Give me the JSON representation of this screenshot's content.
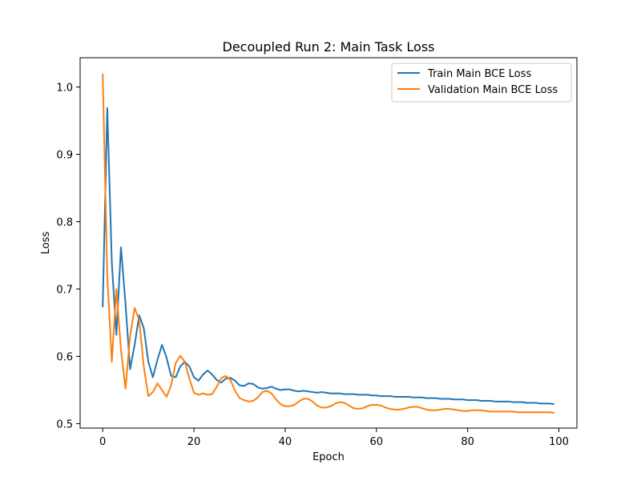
{
  "chart_data": {
    "type": "line",
    "title": "Decoupled Run 2: Main Task Loss",
    "xlabel": "Epoch",
    "ylabel": "Loss",
    "xlim": [
      -4.95,
      103.95
    ],
    "ylim": [
      0.4935,
      1.0435
    ],
    "xticks": [
      0,
      20,
      40,
      60,
      80,
      100
    ],
    "yticks": [
      0.5,
      0.6,
      0.7,
      0.8,
      0.9,
      1.0
    ],
    "xtick_labels": [
      "0",
      "20",
      "40",
      "60",
      "80",
      "100"
    ],
    "ytick_labels": [
      "0.5",
      "0.6",
      "0.7",
      "0.8",
      "0.9",
      "1.0"
    ],
    "grid": false,
    "legend_position": "top-right",
    "series": [
      {
        "name": "Train Main BCE Loss",
        "color": "#1f77b4",
        "x": [
          0,
          1,
          2,
          3,
          4,
          5,
          6,
          7,
          8,
          9,
          10,
          11,
          12,
          13,
          14,
          15,
          16,
          17,
          18,
          19,
          20,
          21,
          22,
          23,
          24,
          25,
          26,
          27,
          28,
          29,
          30,
          31,
          32,
          33,
          34,
          35,
          36,
          37,
          38,
          39,
          40,
          41,
          42,
          43,
          44,
          45,
          46,
          47,
          48,
          49,
          50,
          51,
          52,
          53,
          54,
          55,
          56,
          57,
          58,
          59,
          60,
          61,
          62,
          63,
          64,
          65,
          66,
          67,
          68,
          69,
          70,
          71,
          72,
          73,
          74,
          75,
          76,
          77,
          78,
          79,
          80,
          81,
          82,
          83,
          84,
          85,
          86,
          87,
          88,
          89,
          90,
          91,
          92,
          93,
          94,
          95,
          96,
          97,
          98,
          99
        ],
        "values": [
          0.673,
          0.969,
          0.739,
          0.632,
          0.762,
          0.678,
          0.581,
          0.617,
          0.661,
          0.642,
          0.592,
          0.569,
          0.595,
          0.617,
          0.598,
          0.571,
          0.569,
          0.585,
          0.592,
          0.585,
          0.569,
          0.564,
          0.573,
          0.579,
          0.573,
          0.565,
          0.561,
          0.567,
          0.568,
          0.564,
          0.557,
          0.556,
          0.56,
          0.559,
          0.554,
          0.552,
          0.553,
          0.555,
          0.552,
          0.55,
          0.551,
          0.551,
          0.549,
          0.548,
          0.549,
          0.548,
          0.547,
          0.546,
          0.547,
          0.546,
          0.545,
          0.545,
          0.545,
          0.544,
          0.544,
          0.544,
          0.543,
          0.543,
          0.543,
          0.542,
          0.542,
          0.541,
          0.541,
          0.541,
          0.54,
          0.54,
          0.54,
          0.54,
          0.539,
          0.539,
          0.539,
          0.538,
          0.538,
          0.538,
          0.537,
          0.537,
          0.537,
          0.536,
          0.536,
          0.536,
          0.535,
          0.535,
          0.535,
          0.534,
          0.534,
          0.534,
          0.533,
          0.533,
          0.533,
          0.533,
          0.532,
          0.532,
          0.532,
          0.531,
          0.531,
          0.531,
          0.53,
          0.53,
          0.53,
          0.529
        ]
      },
      {
        "name": "Validation Main BCE Loss",
        "color": "#ff7f0e",
        "x": [
          0,
          1,
          2,
          3,
          4,
          5,
          6,
          7,
          8,
          9,
          10,
          11,
          12,
          13,
          14,
          15,
          16,
          17,
          18,
          19,
          20,
          21,
          22,
          23,
          24,
          25,
          26,
          27,
          28,
          29,
          30,
          31,
          32,
          33,
          34,
          35,
          36,
          37,
          38,
          39,
          40,
          41,
          42,
          43,
          44,
          45,
          46,
          47,
          48,
          49,
          50,
          51,
          52,
          53,
          54,
          55,
          56,
          57,
          58,
          59,
          60,
          61,
          62,
          63,
          64,
          65,
          66,
          67,
          68,
          69,
          70,
          71,
          72,
          73,
          74,
          75,
          76,
          77,
          78,
          79,
          80,
          81,
          82,
          83,
          84,
          85,
          86,
          87,
          88,
          89,
          90,
          91,
          92,
          93,
          94,
          95,
          96,
          97,
          98,
          99
        ],
        "values": [
          1.02,
          0.72,
          0.592,
          0.7,
          0.61,
          0.552,
          0.63,
          0.672,
          0.654,
          0.585,
          0.541,
          0.547,
          0.56,
          0.55,
          0.54,
          0.557,
          0.59,
          0.601,
          0.592,
          0.567,
          0.546,
          0.543,
          0.545,
          0.543,
          0.544,
          0.555,
          0.568,
          0.571,
          0.565,
          0.549,
          0.538,
          0.535,
          0.533,
          0.534,
          0.539,
          0.547,
          0.549,
          0.545,
          0.536,
          0.529,
          0.526,
          0.526,
          0.528,
          0.533,
          0.537,
          0.537,
          0.533,
          0.527,
          0.524,
          0.524,
          0.526,
          0.53,
          0.532,
          0.531,
          0.527,
          0.523,
          0.522,
          0.523,
          0.526,
          0.528,
          0.528,
          0.527,
          0.524,
          0.522,
          0.521,
          0.521,
          0.522,
          0.524,
          0.525,
          0.525,
          0.523,
          0.521,
          0.52,
          0.52,
          0.521,
          0.522,
          0.522,
          0.521,
          0.52,
          0.519,
          0.519,
          0.52,
          0.52,
          0.52,
          0.519,
          0.518,
          0.518,
          0.518,
          0.518,
          0.518,
          0.518,
          0.517,
          0.517,
          0.517,
          0.517,
          0.517,
          0.517,
          0.517,
          0.517,
          0.516
        ]
      }
    ]
  }
}
